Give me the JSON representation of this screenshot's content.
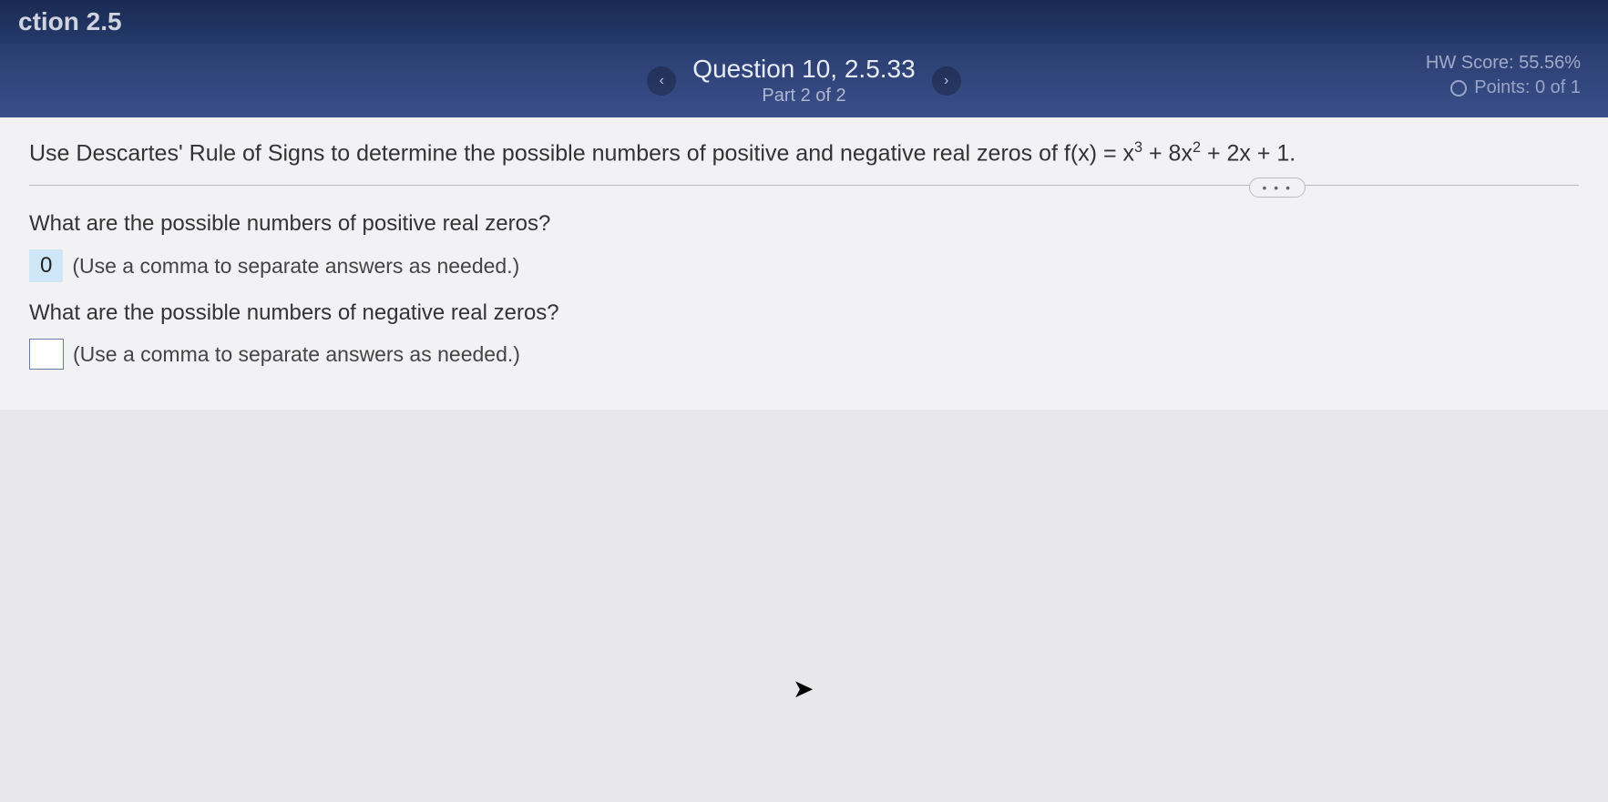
{
  "header": {
    "section_title": "ction 2.5"
  },
  "nav": {
    "prev_glyph": "‹",
    "next_glyph": "›",
    "question_title": "Question 10, 2.5.33",
    "part_label": "Part 2 of 2"
  },
  "score": {
    "hw_label": "HW Score: 55.56%",
    "points_label": "Points: 0 of 1"
  },
  "problem": {
    "prefix": "Use Descartes' Rule of Signs to determine the possible numbers of positive and negative real zeros of f(x) = x",
    "exp1": "3",
    "mid1": " + 8x",
    "exp2": "2",
    "suffix": " + 2x + 1.",
    "ellipsis": "• • •"
  },
  "q1": {
    "prompt": "What are the possible numbers of positive real zeros?",
    "answer_value": "0",
    "hint": "(Use a comma to separate answers as needed.)"
  },
  "q2": {
    "prompt": "What are the possible numbers of negative real zeros?",
    "answer_value": "",
    "hint": "(Use a comma to separate answers as needed.)"
  }
}
